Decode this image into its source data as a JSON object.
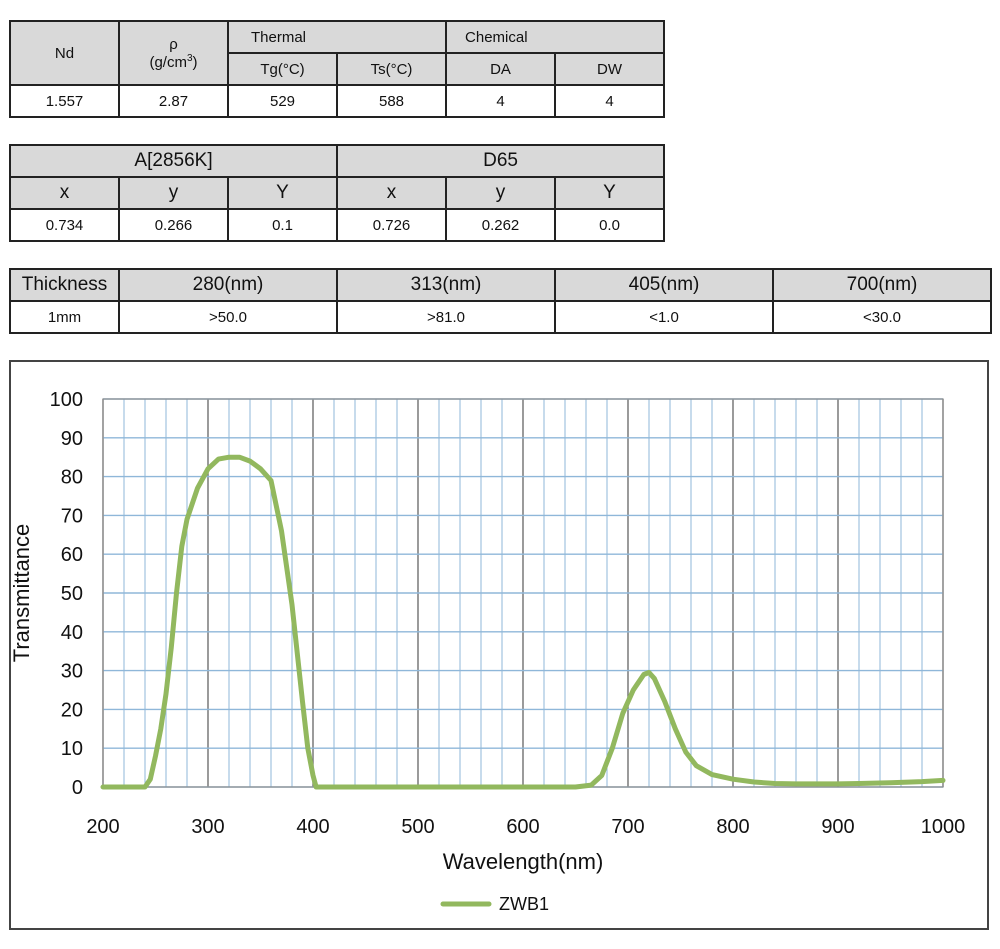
{
  "props_table": {
    "nd_header": "Nd",
    "rho_header": "ρ",
    "rho_unit": "(g/cm",
    "rho_unit_exp": "3",
    "rho_unit_close": ")",
    "thermal_header": "Thermal",
    "chemical_header": "Chemical",
    "sub_headers": [
      "Tg(°C)",
      "Ts(°C)",
      "DA",
      "DW"
    ],
    "values": [
      "1.557",
      "2.87",
      "529",
      "588",
      "4",
      "4"
    ]
  },
  "color_table": {
    "group_a": "A[2856K]",
    "group_d": "D65",
    "sub_headers": [
      "x",
      "y",
      "Y",
      "x",
      "y",
      "Y"
    ],
    "values": [
      "0.734",
      "0.266",
      "0.1",
      "0.726",
      "0.262",
      "0.0"
    ]
  },
  "trans_table": {
    "headers": [
      "Thickness",
      "280(nm)",
      "313(nm)",
      "405(nm)",
      "700(nm)"
    ],
    "values": [
      "1mm",
      ">50.0",
      ">81.0",
      "<1.0",
      "<30.0"
    ]
  },
  "chart_data": {
    "type": "line",
    "title": "",
    "xlabel": "Wavelength(nm)",
    "ylabel": "Transmittance",
    "xlim": [
      200,
      1000
    ],
    "ylim": [
      0,
      100
    ],
    "x_ticks": [
      200,
      300,
      400,
      500,
      600,
      700,
      800,
      900,
      1000
    ],
    "y_ticks": [
      0,
      10,
      20,
      30,
      40,
      50,
      60,
      70,
      80,
      90,
      100
    ],
    "x_minor_step": 20,
    "grid": true,
    "legend": "bottom-center",
    "series_color": "#92b85e",
    "series": [
      {
        "name": "ZWB1",
        "x": [
          200,
          240,
          245,
          250,
          255,
          260,
          265,
          270,
          275,
          280,
          290,
          300,
          310,
          320,
          330,
          340,
          350,
          360,
          370,
          380,
          390,
          395,
          400,
          403,
          420,
          500,
          600,
          650,
          665,
          675,
          685,
          695,
          705,
          715,
          720,
          725,
          735,
          745,
          755,
          765,
          780,
          800,
          820,
          840,
          860,
          880,
          900,
          920,
          950,
          980,
          1000
        ],
        "y": [
          0,
          0,
          2,
          8,
          15,
          24,
          36,
          50,
          62,
          69,
          77,
          82,
          84.5,
          85,
          85,
          84,
          82,
          79,
          66,
          47,
          22,
          10,
          3,
          0,
          0,
          0,
          0,
          0,
          0.5,
          3,
          10,
          19,
          25,
          29,
          29.5,
          28,
          22,
          15,
          9,
          5.5,
          3.2,
          2,
          1.3,
          0.9,
          0.8,
          0.8,
          0.8,
          0.9,
          1.1,
          1.4,
          1.7
        ]
      }
    ]
  }
}
